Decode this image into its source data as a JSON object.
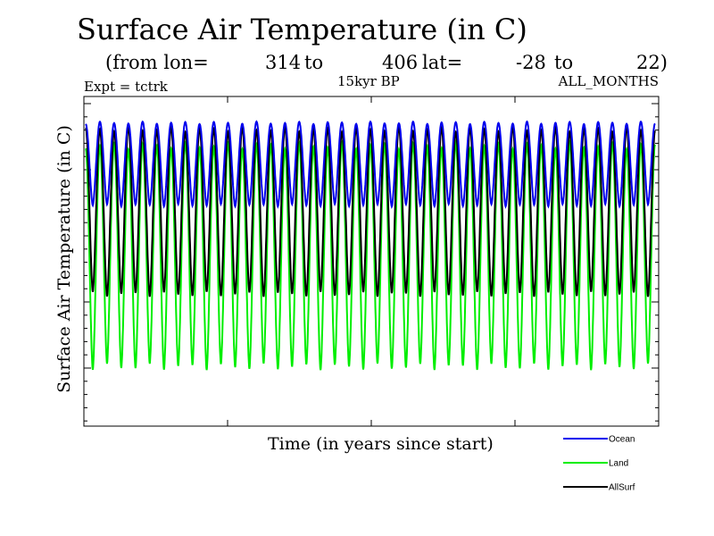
{
  "header": {
    "title": "Surface Air Temperature (in C)",
    "subtitle_prefix": "(from lon=",
    "lon_start": "314",
    "lon_to": "to",
    "lon_end": "406",
    "lat_label": "lat=",
    "lat_start": "-28",
    "lat_to": "to",
    "lat_end": "22)",
    "expt": "Expt = tctrk",
    "period": "15kyr BP",
    "months": "ALL_MONTHS"
  },
  "chart_data": {
    "type": "line",
    "title": "Surface Air Temperature (in C)",
    "xlabel": "Time (in years since start)",
    "ylabel": "Surface Air Temperature (in C)",
    "x_unit": "years since start",
    "cycles": 40,
    "cycle_period_years": 1,
    "tick_labels_shown": false,
    "legend_position": "below-right",
    "series": [
      {
        "name": "Ocean",
        "color": "#0000ee",
        "annual_max_relative": 0.92,
        "annual_min_relative": 0.67,
        "note": "relative to y-axis span (0 = bottom, 1 = top); no numeric tick labels shown"
      },
      {
        "name": "Land",
        "color": "#00ee00",
        "annual_max_relative": 0.85,
        "annual_min_relative": 0.18,
        "note": "relative to y-axis span (0 = bottom, 1 = top); no numeric tick labels shown"
      },
      {
        "name": "AllSurf",
        "color": "#000000",
        "annual_max_relative": 0.9,
        "annual_min_relative": 0.4,
        "note": "relative to y-axis span (0 = bottom, 1 = top); no numeric tick labels shown"
      }
    ]
  }
}
